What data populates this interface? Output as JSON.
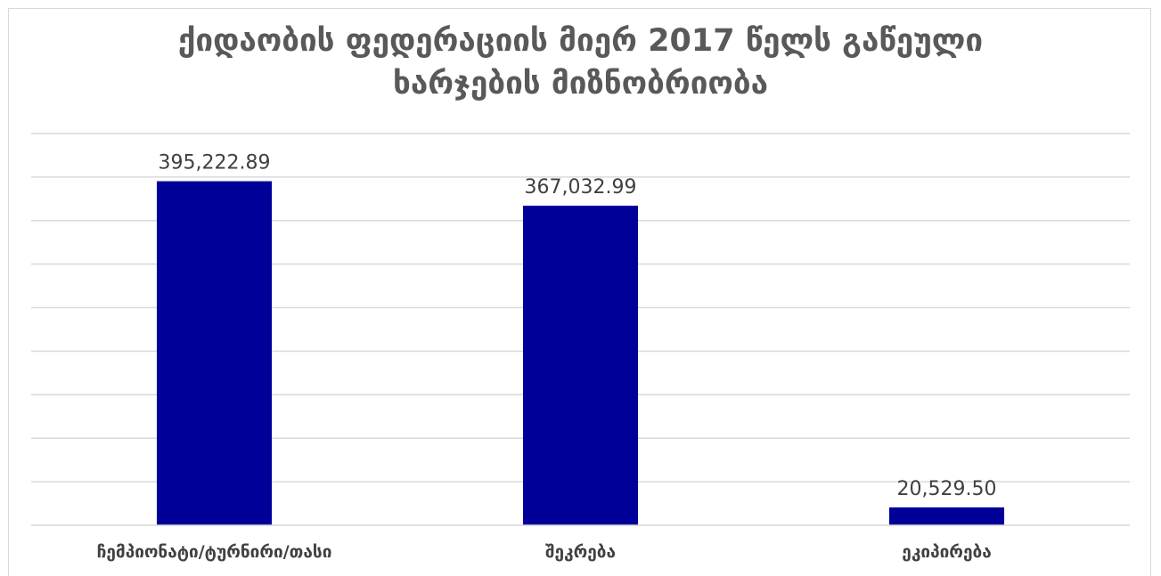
{
  "chart_data": {
    "type": "bar",
    "title_lines": [
      "ქიდაობის ფედერაციის მიერ 2017 წელს გაწეული",
      "ხარჯების მიზნობრიობა"
    ],
    "categories": [
      "ჩემპიონატი/ტურნირი/თასი",
      "შეკრება",
      "ეკიპირება"
    ],
    "values": [
      395222.89,
      367032.99,
      20529.5
    ],
    "value_labels": [
      "395,222.89",
      "367,032.99",
      "20,529.50"
    ],
    "ylim": [
      0,
      450000
    ],
    "gridline_step": 50000,
    "grid": true,
    "legend": "none",
    "colors": {
      "bar": "#000099",
      "grid": "#d9d9d9",
      "axis": "#d9d9d9"
    }
  }
}
